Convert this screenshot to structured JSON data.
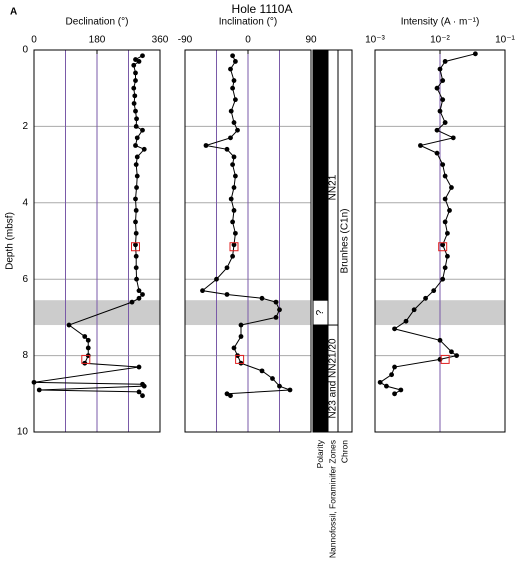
{
  "panel_label": "A",
  "title": "Hole 1110A",
  "depth_label": "Depth (mbsf)",
  "shaded_interval": [
    6.55,
    7.2
  ],
  "chart_data": [
    {
      "type": "line",
      "title": "Declination (°)",
      "xlim": [
        0,
        360
      ],
      "xticks": [
        0,
        180,
        360
      ],
      "xgrid": [
        90,
        180,
        270
      ],
      "ylim": [
        0,
        10
      ],
      "yticks": [
        0,
        2,
        4,
        6,
        8,
        10
      ],
      "color": "#000000",
      "highlight": {
        "depth": [
          5.15,
          8.1
        ],
        "values": [
          290,
          148
        ],
        "color": "#e02020"
      },
      "depth": [
        0.15,
        0.25,
        0.3,
        0.4,
        0.6,
        0.8,
        1.0,
        1.2,
        1.4,
        1.6,
        1.8,
        2.0,
        2.1,
        2.3,
        2.5,
        2.6,
        2.8,
        3.0,
        3.3,
        3.6,
        3.9,
        4.2,
        4.5,
        4.8,
        5.1,
        5.4,
        5.7,
        6.0,
        6.3,
        6.4,
        6.5,
        6.6,
        7.2,
        7.5,
        7.6,
        7.8,
        8.0,
        8.2,
        8.3,
        8.7,
        8.75,
        8.8,
        8.9,
        8.95,
        9.05
      ],
      "values": [
        310,
        290,
        300,
        285,
        290,
        290,
        285,
        288,
        286,
        290,
        293,
        292,
        310,
        295,
        290,
        315,
        295,
        292,
        295,
        293,
        290,
        292,
        290,
        292,
        290,
        292,
        292,
        293,
        300,
        310,
        300,
        280,
        100,
        145,
        155,
        155,
        155,
        145,
        300,
        0,
        310,
        315,
        15,
        300,
        310
      ]
    },
    {
      "type": "line",
      "title": "Inclination (°)",
      "xlim": [
        -90,
        90
      ],
      "xticks": [
        -90,
        0,
        90
      ],
      "xgrid": [
        -45,
        0,
        45
      ],
      "ylim": [
        0,
        10
      ],
      "color": "#000000",
      "highlight": {
        "depth": [
          5.15,
          8.1
        ],
        "values": [
          -20,
          -12
        ],
        "color": "#e02020"
      },
      "depth": [
        0.15,
        0.3,
        0.5,
        0.8,
        1.0,
        1.3,
        1.6,
        1.9,
        2.1,
        2.3,
        2.5,
        2.6,
        2.8,
        3.0,
        3.3,
        3.6,
        3.9,
        4.2,
        4.5,
        4.8,
        5.1,
        5.4,
        5.7,
        6.0,
        6.3,
        6.4,
        6.5,
        6.6,
        6.8,
        7.0,
        7.2,
        7.5,
        7.8,
        8.0,
        8.2,
        8.4,
        8.6,
        8.8,
        8.9,
        9.0,
        9.05
      ],
      "values": [
        -22,
        -18,
        -25,
        -20,
        -22,
        -18,
        -24,
        -20,
        -15,
        -25,
        -60,
        -30,
        -20,
        -22,
        -18,
        -20,
        -24,
        -20,
        -22,
        -18,
        -20,
        -22,
        -30,
        -45,
        -65,
        -30,
        20,
        40,
        45,
        40,
        -10,
        -10,
        -20,
        -15,
        -10,
        20,
        35,
        45,
        60,
        -30,
        -25
      ]
    },
    {
      "type": "line",
      "title": "Intensity (A · m⁻¹)",
      "log": true,
      "xlim": [
        0.001,
        0.1
      ],
      "xticks": [
        {
          "value": 0.001,
          "label": "10⁻³"
        },
        {
          "value": 0.01,
          "label": "10⁻²"
        },
        {
          "value": 0.1,
          "label": "10⁻¹"
        }
      ],
      "xgrid": [
        0.01
      ],
      "ylim": [
        0,
        10
      ],
      "color": "#000000",
      "highlight": {
        "depth": [
          5.15,
          8.1
        ],
        "values": [
          0.011,
          0.012
        ],
        "color": "#e02020"
      },
      "depth": [
        0.1,
        0.3,
        0.5,
        0.8,
        1.0,
        1.3,
        1.6,
        1.9,
        2.1,
        2.3,
        2.5,
        2.7,
        3.0,
        3.3,
        3.6,
        3.9,
        4.2,
        4.5,
        4.8,
        5.1,
        5.4,
        5.7,
        6.0,
        6.3,
        6.5,
        6.8,
        7.1,
        7.3,
        7.6,
        7.9,
        8.0,
        8.1,
        8.3,
        8.5,
        8.7,
        8.8,
        8.9,
        9.0
      ],
      "values": [
        0.035,
        0.012,
        0.01,
        0.011,
        0.009,
        0.011,
        0.01,
        0.012,
        0.009,
        0.016,
        0.005,
        0.009,
        0.011,
        0.012,
        0.015,
        0.012,
        0.014,
        0.012,
        0.013,
        0.011,
        0.013,
        0.012,
        0.011,
        0.008,
        0.006,
        0.004,
        0.003,
        0.002,
        0.01,
        0.015,
        0.018,
        0.01,
        0.002,
        0.0018,
        0.0012,
        0.0015,
        0.0025,
        0.002
      ]
    }
  ],
  "columns": {
    "polarity": {
      "label": "Polarity",
      "intervals": [
        {
          "top": 0,
          "bottom": 6.55,
          "fill": "#000000"
        },
        {
          "top": 6.55,
          "bottom": 7.2,
          "fill": "#ffffff"
        },
        {
          "top": 7.2,
          "bottom": 10,
          "fill": "#000000"
        }
      ],
      "uncertain_label": "?"
    },
    "zones": {
      "label": "Nannofossil, Foraminifer Zones",
      "boundary": 7.2,
      "upper": "NN21",
      "lower": "N23 and NN21/20"
    },
    "chron": {
      "label": "Chron",
      "name": "Brunhes (C1n)"
    }
  }
}
